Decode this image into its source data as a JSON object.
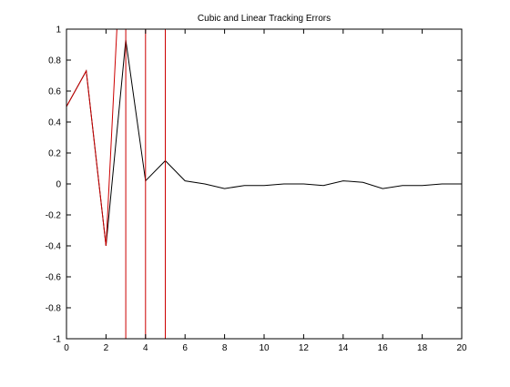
{
  "chart_data": {
    "type": "line",
    "title": "Cubic and Linear Tracking Errors",
    "xlabel": "",
    "ylabel": "",
    "xlim": [
      0,
      20
    ],
    "ylim": [
      -1,
      1
    ],
    "grid": false,
    "xticks": [
      0,
      2,
      4,
      6,
      8,
      10,
      12,
      14,
      16,
      18,
      20
    ],
    "yticks": [
      -1,
      -0.8,
      -0.6,
      -0.4,
      -0.2,
      0,
      0.2,
      0.4,
      0.6,
      0.8,
      1
    ],
    "series": [
      {
        "color": "#000000",
        "x": [
          0,
          1,
          2,
          3,
          4,
          5,
          6,
          7,
          8,
          9,
          10,
          11,
          12,
          13,
          14,
          15,
          16,
          17,
          18,
          19,
          20
        ],
        "y": [
          0.5,
          0.73,
          -0.4,
          0.93,
          0.02,
          0.15,
          0.02,
          0.0,
          -0.03,
          -0.01,
          -0.01,
          0.0,
          0.0,
          -0.01,
          0.02,
          0.01,
          -0.03,
          -0.01,
          -0.01,
          0.0,
          0.0
        ]
      },
      {
        "color": "#cc0000",
        "x": [
          0,
          1,
          2,
          2.55,
          3,
          3,
          4,
          4,
          5,
          5
        ],
        "y": [
          0.5,
          0.73,
          -0.4,
          1,
          1,
          -1,
          -1,
          1,
          1,
          -1
        ]
      }
    ]
  }
}
